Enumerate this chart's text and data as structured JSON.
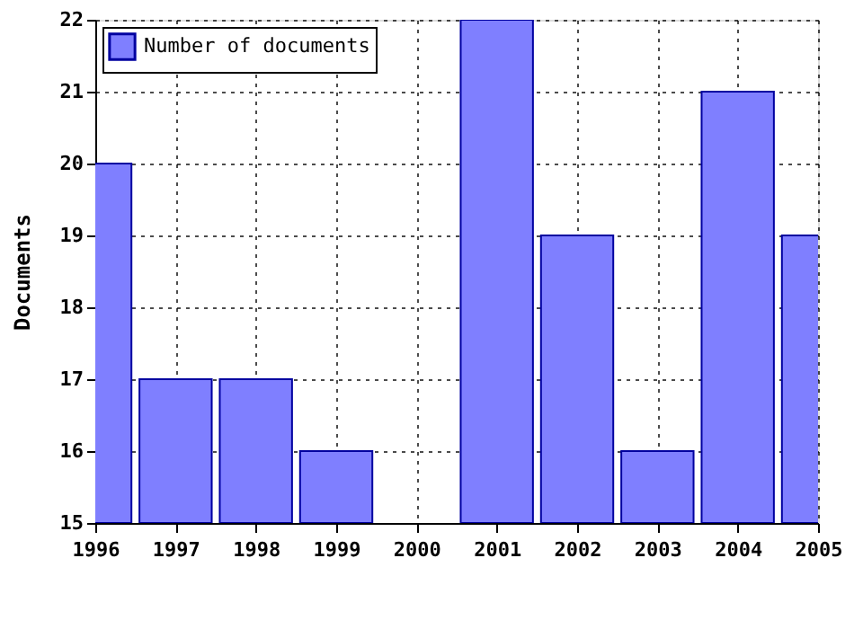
{
  "chart_data": {
    "type": "bar",
    "ylabel": "Documents",
    "x": [
      1996,
      1997,
      1998,
      1999,
      2000,
      2001,
      2002,
      2003,
      2004,
      2005
    ],
    "series": [
      {
        "name": "Number of documents",
        "color": "#7f7fff",
        "values": [
          20,
          17,
          17,
          16,
          null,
          22,
          19,
          16,
          21,
          19
        ]
      }
    ],
    "xlim": [
      1996,
      2005
    ],
    "xticks": [
      1996,
      1997,
      1998,
      1999,
      2000,
      2001,
      2002,
      2003,
      2004,
      2005
    ],
    "ylim": [
      15,
      22
    ],
    "yticks": [
      15,
      16,
      17,
      18,
      19,
      20,
      21,
      22
    ],
    "grid": true,
    "legend": "top left"
  }
}
